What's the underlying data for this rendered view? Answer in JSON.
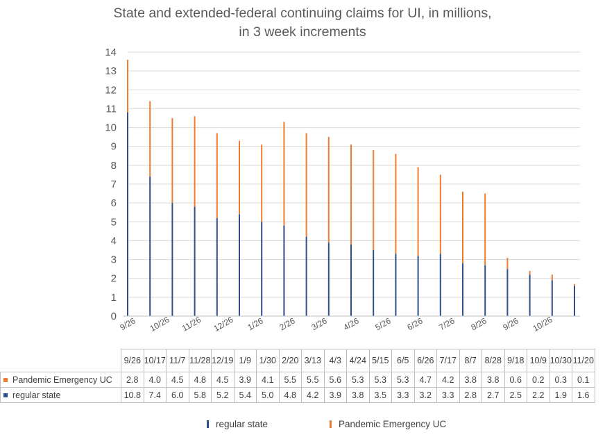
{
  "colors": {
    "regular": "#2e4f8f",
    "pandemic": "#ed7d31",
    "grid": "#d9d9d9",
    "axis": "#bfbfbf",
    "text": "#595959"
  },
  "chart_data": {
    "type": "bar",
    "stacked": true,
    "title": [
      "State and extended-federal continuing claims for UI, in millions,",
      "in 3 week increments"
    ],
    "ylim": [
      0,
      14
    ],
    "yticks": [
      0,
      1,
      2,
      3,
      4,
      5,
      6,
      7,
      8,
      9,
      10,
      11,
      12,
      13,
      14
    ],
    "x_axis_labels": [
      "9/26",
      "10/26",
      "11/26",
      "12/26",
      "1/26",
      "2/26",
      "3/26",
      "4/26",
      "5/26",
      "6/26",
      "7/26",
      "8/26",
      "9/26",
      "10/26"
    ],
    "categories": [
      "9/26",
      "10/17",
      "11/7",
      "11/28",
      "12/19",
      "1/9",
      "1/30",
      "2/20",
      "3/13",
      "4/3",
      "4/24",
      "5/15",
      "6/5",
      "6/26",
      "7/17",
      "8/7",
      "8/28",
      "9/18",
      "10/9",
      "10/30",
      "11/20"
    ],
    "series": [
      {
        "name": "Pandemic Emergency UC",
        "color": "#ed7d31",
        "values": [
          2.8,
          4.0,
          4.5,
          4.8,
          4.5,
          3.9,
          4.1,
          5.5,
          5.5,
          5.6,
          5.3,
          5.3,
          5.3,
          4.7,
          4.2,
          3.8,
          3.8,
          0.6,
          0.2,
          0.3,
          0.1
        ]
      },
      {
        "name": "regular state",
        "color": "#2e4f8f",
        "values": [
          10.8,
          7.4,
          6.0,
          5.8,
          5.2,
          5.4,
          5.0,
          4.8,
          4.2,
          3.9,
          3.8,
          3.5,
          3.3,
          3.2,
          3.3,
          2.8,
          2.7,
          2.5,
          2.2,
          1.9,
          1.6
        ]
      }
    ],
    "grid": true,
    "legend_position": "bottom",
    "data_table": true
  }
}
